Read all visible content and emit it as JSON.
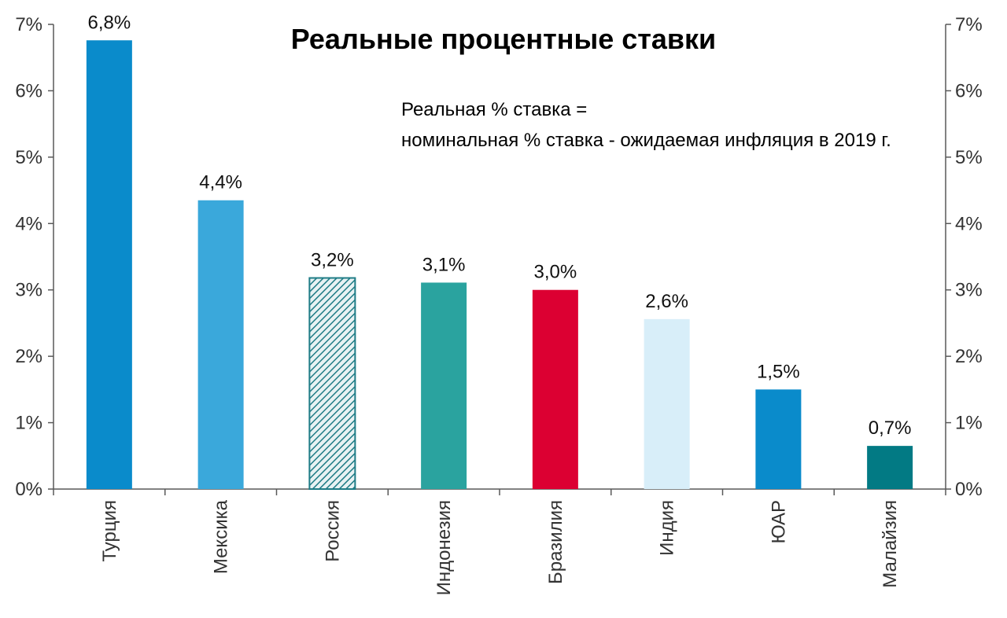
{
  "chart_data": {
    "type": "bar",
    "title": "Реальные процентные ставки",
    "annotation": {
      "line1": "Реальная % ставка =",
      "line2": "номинальная % ставка - ожидаемая инфляция в 2019 г."
    },
    "categories": [
      "Турция",
      "Мексика",
      "Россия",
      "Индонезия",
      "Бразилия",
      "Индия",
      "ЮАР",
      "Малайзия"
    ],
    "values": [
      6.76,
      4.35,
      3.18,
      3.11,
      3.0,
      2.56,
      1.5,
      0.65
    ],
    "data_labels": [
      "6,8%",
      "4,4%",
      "3,2%",
      "3,1%",
      "3,0%",
      "2,6%",
      "1,5%",
      "0,7%"
    ],
    "bar_colors": [
      "#0A8BCB",
      "#3AA8DB",
      "#1F7C86",
      "#2AA39F",
      "#DC0032",
      "#D8EEF9",
      "#0A8BCB",
      "#027A84"
    ],
    "hatched": [
      false,
      false,
      true,
      false,
      false,
      false,
      false,
      false
    ],
    "ylim": [
      0,
      7
    ],
    "yticks": [
      0,
      1,
      2,
      3,
      4,
      5,
      6,
      7
    ],
    "ytick_labels": [
      "0%",
      "1%",
      "2%",
      "3%",
      "4%",
      "5%",
      "6%",
      "7%"
    ],
    "secondary_axis": true,
    "grid": false,
    "xlabel": "",
    "ylabel": ""
  }
}
